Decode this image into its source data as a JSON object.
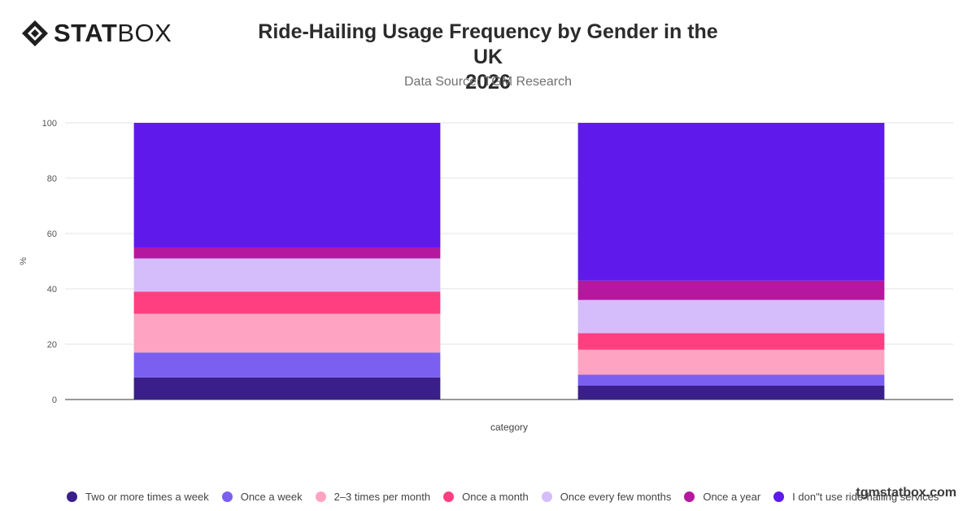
{
  "brand": {
    "logo_bold": "STAT",
    "logo_light": "BOX",
    "watermark": "tgmstatbox.com"
  },
  "chart_data": {
    "type": "bar",
    "stacked": true,
    "title_line1": "Ride-Hailing Usage Frequency by Gender in the UK",
    "title_line2": "2026",
    "subtitle": "Data Source: TGM Research",
    "xlabel": "category",
    "ylabel": "%",
    "ylim": [
      0,
      100
    ],
    "yticks": [
      "0",
      "20",
      "40",
      "60",
      "80",
      "100"
    ],
    "categories": [
      "",
      ""
    ],
    "grid": true,
    "legend_position": "bottom",
    "series": [
      {
        "name": "Two or more times a week",
        "color": "#3a1f8a",
        "values": [
          8,
          5
        ]
      },
      {
        "name": "Once a week",
        "color": "#7b5ff0",
        "values": [
          9,
          4
        ]
      },
      {
        "name": "2–3 times per month",
        "color": "#ffa3c2",
        "values": [
          14,
          9
        ]
      },
      {
        "name": "Once a month",
        "color": "#ff3f7f",
        "values": [
          8,
          6
        ]
      },
      {
        "name": "Once every few months",
        "color": "#d5bdfc",
        "values": [
          12,
          12
        ]
      },
      {
        "name": "Once a year",
        "color": "#b5179e",
        "values": [
          4,
          7
        ]
      },
      {
        "name": "I don\"t use ride-hailing services",
        "color": "#5f1aeb",
        "values": [
          45,
          57
        ]
      }
    ]
  }
}
